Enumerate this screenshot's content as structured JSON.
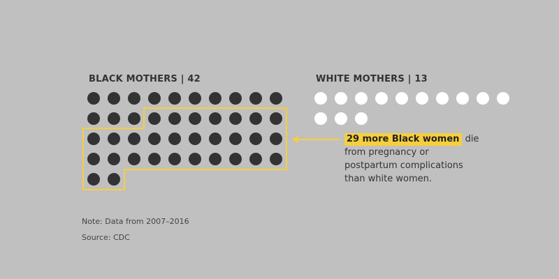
{
  "chart_data": {
    "type": "unit-chart",
    "groups": [
      {
        "label": "BLACK MOTHERS | 42",
        "count": 42,
        "color": "#333333"
      },
      {
        "label": "WHITE MOTHERS | 13",
        "count": 13,
        "color": "#ffffff"
      }
    ],
    "highlight": {
      "group": 0,
      "count": 29,
      "color": "#f6cf3e"
    },
    "annotation": {
      "highlight_text": "29 more Black women",
      "text_after": "die",
      "lines": [
        "from pregnancy or",
        "postpartum complications",
        "than white women."
      ]
    }
  },
  "note": "Note: Data from 2007–2016",
  "source": "Source: CDC"
}
